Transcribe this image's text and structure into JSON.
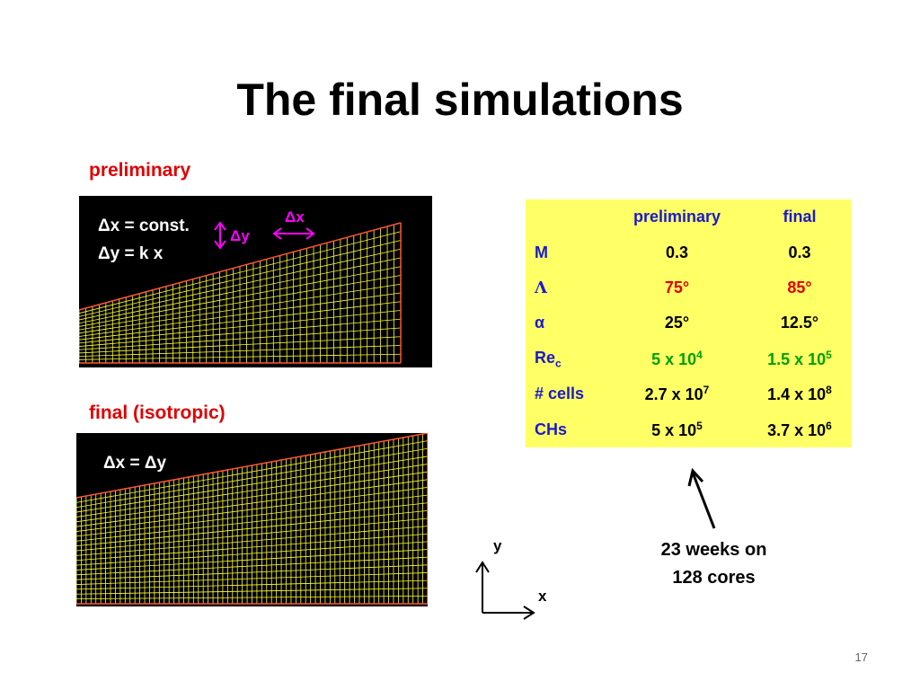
{
  "slide": {
    "title": "The final simulations",
    "page_number": "17"
  },
  "preliminary_panel": {
    "heading": "preliminary",
    "line1": "Δx = const.",
    "line2": "Δy = k x",
    "dx_label": "Δx",
    "dy_label": "Δy"
  },
  "final_panel": {
    "heading": "final (isotropic)",
    "line1": "Δx = Δy"
  },
  "table": {
    "headers": [
      "",
      "preliminary",
      "final"
    ],
    "rows": [
      {
        "label": "M",
        "prelim": "0.3",
        "final": "0.3"
      },
      {
        "label": "Λ",
        "prelim": "75°",
        "final": "85°"
      },
      {
        "label": "α",
        "prelim": "25°",
        "final": "12.5°"
      },
      {
        "label": "Re",
        "label_sub": "c",
        "prelim": "5 x 10",
        "prelim_sup": "4",
        "final": "1.5 x 10",
        "final_sup": "5"
      },
      {
        "label": "# cells",
        "prelim": "2.7 x 10",
        "prelim_sup": "7",
        "final": "1.4 x 10",
        "final_sup": "8"
      },
      {
        "label": "CHs",
        "prelim": "5 x 10",
        "prelim_sup": "5",
        "final": "3.7 x 10",
        "final_sup": "6"
      }
    ]
  },
  "annotation": {
    "line1": "23 weeks on",
    "line2": "128 cores"
  },
  "axes": {
    "y_label": "y",
    "x_label": "x"
  },
  "colors": {
    "accent_red": "#e00000",
    "table_bg": "#ffff66",
    "table_text_blue": "#1a1acc",
    "green": "#00a000",
    "mesh_yellow": "#ffff33",
    "magenta": "#ff00ff"
  }
}
